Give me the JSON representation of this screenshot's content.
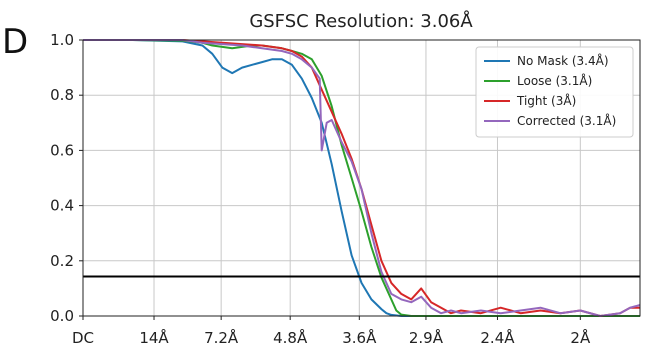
{
  "panel_label": "D",
  "chart_data": {
    "type": "line",
    "title": "GSFSC Resolution: 3.06Å",
    "xlabel": "",
    "ylabel": "",
    "x_range": [
      0,
      0.56
    ],
    "ylim": [
      0,
      1
    ],
    "x_ticks": [
      {
        "label": "DC",
        "pos": 0.0
      },
      {
        "label": "14Å",
        "pos": 0.0714
      },
      {
        "label": "7.2Å",
        "pos": 0.1389
      },
      {
        "label": "4.8Å",
        "pos": 0.2083
      },
      {
        "label": "3.6Å",
        "pos": 0.2778
      },
      {
        "label": "2.9Å",
        "pos": 0.3448
      },
      {
        "label": "2.4Å",
        "pos": 0.4167
      },
      {
        "label": "2Å",
        "pos": 0.5
      }
    ],
    "y_ticks": [
      "0.0",
      "0.2",
      "0.4",
      "0.6",
      "0.8",
      "1.0"
    ],
    "grid": true,
    "threshold": 0.143,
    "legend_position": "top-right",
    "series": [
      {
        "name": "No Mask (3.4Å)",
        "color": "#1f77b4",
        "x": [
          0,
          0.05,
          0.1,
          0.12,
          0.13,
          0.14,
          0.15,
          0.16,
          0.17,
          0.18,
          0.19,
          0.2,
          0.21,
          0.22,
          0.23,
          0.24,
          0.25,
          0.26,
          0.27,
          0.28,
          0.29,
          0.3,
          0.305,
          0.31,
          0.32,
          0.33,
          0.34,
          0.35,
          0.36,
          0.4,
          0.45,
          0.5,
          0.56
        ],
        "y": [
          1.0,
          1.0,
          0.995,
          0.98,
          0.95,
          0.9,
          0.88,
          0.9,
          0.91,
          0.92,
          0.93,
          0.93,
          0.91,
          0.86,
          0.79,
          0.7,
          0.55,
          0.38,
          0.22,
          0.12,
          0.06,
          0.025,
          0.01,
          0.004,
          0.0,
          0.0,
          0.0,
          0.0,
          0.0,
          0.0,
          0.0,
          0.0,
          0.0
        ]
      },
      {
        "name": "Loose (3.1Å)",
        "color": "#2ca02c",
        "x": [
          0,
          0.05,
          0.1,
          0.12,
          0.13,
          0.14,
          0.15,
          0.16,
          0.17,
          0.18,
          0.19,
          0.2,
          0.21,
          0.22,
          0.23,
          0.24,
          0.25,
          0.26,
          0.27,
          0.28,
          0.29,
          0.3,
          0.31,
          0.315,
          0.32,
          0.33,
          0.34,
          0.36,
          0.4,
          0.45,
          0.5,
          0.56
        ],
        "y": [
          1.0,
          1.0,
          0.998,
          0.99,
          0.98,
          0.975,
          0.97,
          0.975,
          0.98,
          0.98,
          0.975,
          0.97,
          0.96,
          0.95,
          0.93,
          0.87,
          0.76,
          0.62,
          0.5,
          0.38,
          0.25,
          0.14,
          0.06,
          0.02,
          0.005,
          0.0,
          0.0,
          0.0,
          0.0,
          0.0,
          0.0,
          0.0
        ]
      },
      {
        "name": "Tight (3Å)",
        "color": "#d62728",
        "x": [
          0,
          0.05,
          0.1,
          0.12,
          0.14,
          0.16,
          0.18,
          0.2,
          0.21,
          0.22,
          0.23,
          0.24,
          0.25,
          0.26,
          0.27,
          0.28,
          0.29,
          0.3,
          0.31,
          0.32,
          0.33,
          0.34,
          0.35,
          0.36,
          0.37,
          0.38,
          0.4,
          0.42,
          0.44,
          0.46,
          0.48,
          0.5,
          0.52,
          0.54,
          0.55,
          0.56
        ],
        "y": [
          1.0,
          1.0,
          1.0,
          0.995,
          0.99,
          0.985,
          0.98,
          0.97,
          0.96,
          0.94,
          0.9,
          0.82,
          0.74,
          0.66,
          0.57,
          0.46,
          0.33,
          0.2,
          0.12,
          0.08,
          0.06,
          0.1,
          0.05,
          0.03,
          0.01,
          0.02,
          0.01,
          0.03,
          0.01,
          0.02,
          0.01,
          0.02,
          0.0,
          0.01,
          0.03,
          0.03
        ]
      },
      {
        "name": "Corrected (3.1Å)",
        "color": "#9467bd",
        "x": [
          0,
          0.05,
          0.1,
          0.12,
          0.14,
          0.16,
          0.18,
          0.2,
          0.21,
          0.22,
          0.23,
          0.238,
          0.24,
          0.245,
          0.25,
          0.26,
          0.27,
          0.28,
          0.29,
          0.3,
          0.31,
          0.32,
          0.33,
          0.34,
          0.35,
          0.36,
          0.37,
          0.38,
          0.4,
          0.42,
          0.44,
          0.46,
          0.48,
          0.5,
          0.52,
          0.54,
          0.55,
          0.56
        ],
        "y": [
          1.0,
          1.0,
          1.0,
          0.99,
          0.985,
          0.98,
          0.97,
          0.96,
          0.95,
          0.93,
          0.9,
          0.86,
          0.6,
          0.7,
          0.71,
          0.63,
          0.56,
          0.46,
          0.3,
          0.16,
          0.08,
          0.06,
          0.05,
          0.07,
          0.03,
          0.01,
          0.02,
          0.01,
          0.02,
          0.01,
          0.02,
          0.03,
          0.01,
          0.02,
          0.0,
          0.01,
          0.03,
          0.04
        ]
      }
    ]
  }
}
